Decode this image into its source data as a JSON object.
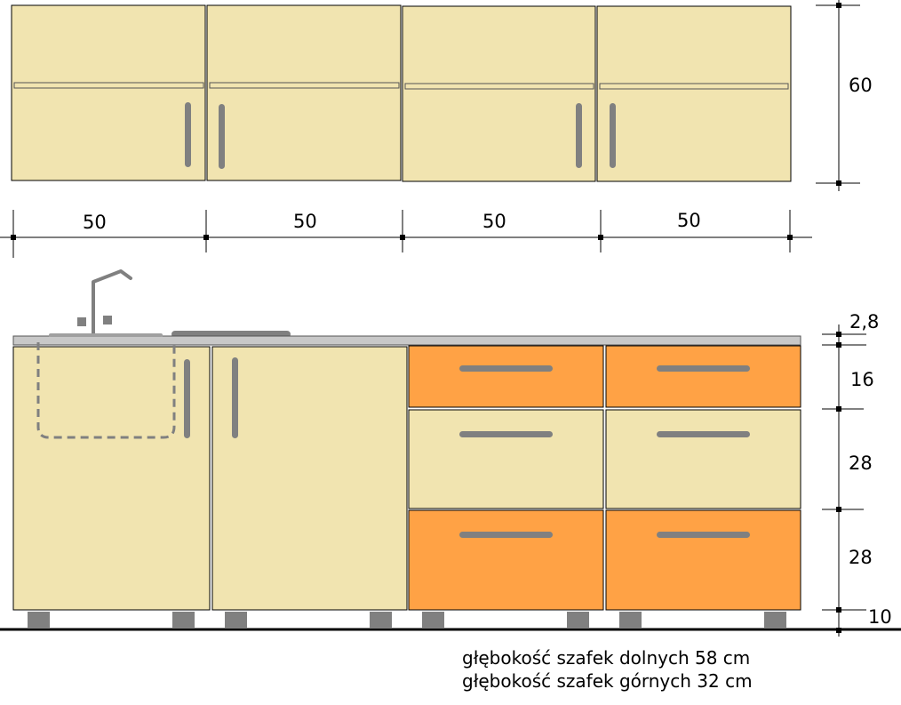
{
  "colors": {
    "cream": "#f1e4b0",
    "orange": "#ffa245",
    "handle": "#808080",
    "countertop": "#c8c8c8",
    "outline": "#000000",
    "legs": "#808080"
  },
  "upper_cabinets": {
    "height_label": "60",
    "widths": [
      "50",
      "50",
      "50",
      "50"
    ]
  },
  "lower_cabinets": {
    "countertop_label": "2,8",
    "drawer_heights": [
      "16",
      "28",
      "28"
    ],
    "plinth_label": "10"
  },
  "notes": {
    "lower_depth": "głębokość szafek dolnych 58 cm",
    "upper_depth": "głębokość szafek górnych 32 cm"
  }
}
